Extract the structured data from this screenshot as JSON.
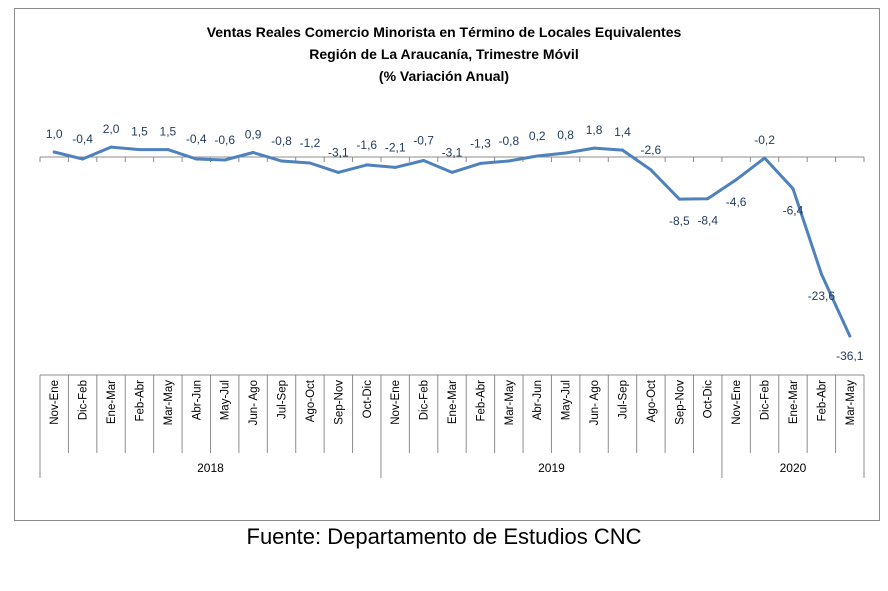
{
  "chart_data": {
    "type": "line",
    "title": "Ventas Reales Comercio Minorista  en Término de Locales Equivalentes",
    "subtitle": "Región de La Araucanía, Trimestre Móvil",
    "subtitle2": "(% Variación Anual)",
    "categories": [
      "Nov-Ene",
      "Dic-Feb",
      "Ene-Mar",
      "Feb-Abr",
      "Mar-May",
      "Abr-Jun",
      "May-Jul",
      "Jun- Ago",
      "Jul-Sep",
      "Ago-Oct",
      "Sep-Nov",
      "Oct-Dic",
      "Nov-Ene",
      "Dic-Feb",
      "Ene-Mar",
      "Feb-Abr",
      "Mar-May",
      "Abr-Jun",
      "May-Jul",
      "Jun- Ago",
      "Jul-Sep",
      "Ago-Oct",
      "Sep-Nov",
      "Oct-Dic",
      "Nov-Ene",
      "Dic-Feb",
      "Ene-Mar",
      "Feb-Abr",
      "Mar-May"
    ],
    "values": [
      1.0,
      -0.4,
      2.0,
      1.5,
      1.5,
      -0.4,
      -0.6,
      0.9,
      -0.8,
      -1.2,
      -3.1,
      -1.6,
      -2.1,
      -0.7,
      -3.1,
      -1.3,
      -0.8,
      0.2,
      0.8,
      1.8,
      1.4,
      -2.6,
      -8.5,
      -8.4,
      -4.6,
      -0.2,
      -6.4,
      -23.6,
      -36.1
    ],
    "data_labels": [
      "1,0",
      "-0,4",
      "2,0",
      "1,5",
      "1,5",
      "-0,4",
      "-0,6",
      "0,9",
      "-0,8",
      "-1,2",
      "-3,1",
      "-1,6",
      "-2,1",
      "-0,7",
      "-3,1",
      "-1,3",
      "-0,8",
      "0,2",
      "0,8",
      "1,8",
      "1,4",
      "-2,6",
      "-8,5",
      "-8,4",
      "-4,6",
      "-0,2",
      "-6,4",
      "-23,6",
      "-36,1"
    ],
    "year_groups": [
      {
        "label": "2018",
        "start": 0,
        "end": 11
      },
      {
        "label": "2019",
        "start": 12,
        "end": 23
      },
      {
        "label": "2020",
        "start": 24,
        "end": 28
      }
    ],
    "ylim": [
      -38,
      3
    ],
    "grid": false,
    "line_color": "#4f81bd",
    "label_color": "#1f3a5f"
  },
  "source": "Fuente: Departamento de Estudios CNC"
}
